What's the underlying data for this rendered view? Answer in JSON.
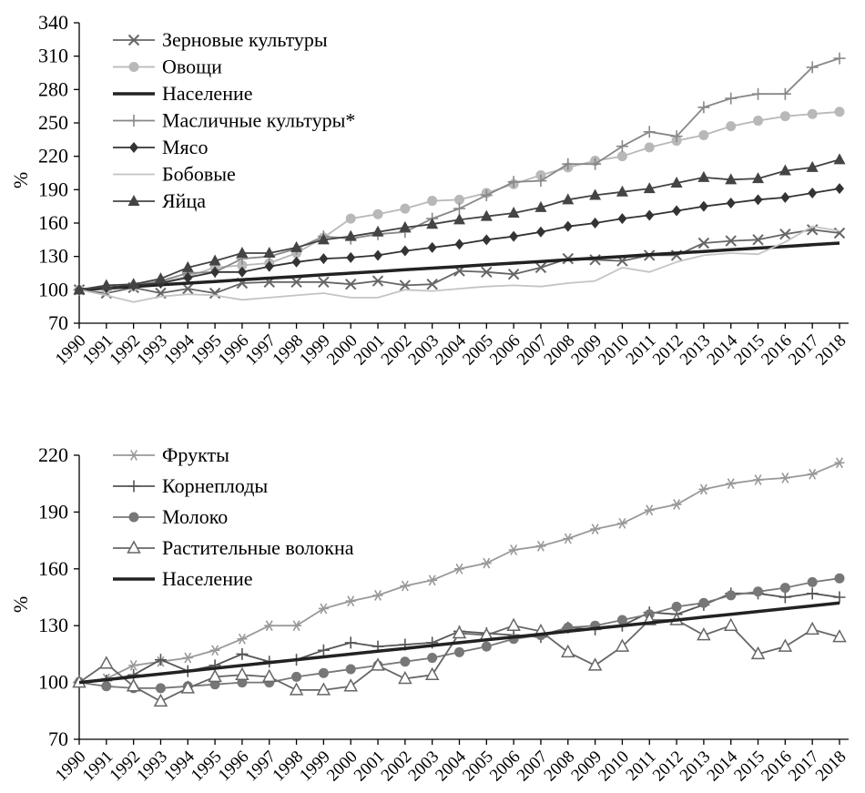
{
  "chart_data": [
    {
      "type": "line",
      "ylabel": "%",
      "ylim": [
        70,
        340
      ],
      "yticks": [
        70,
        100,
        130,
        160,
        190,
        220,
        250,
        280,
        310,
        340
      ],
      "x": [
        "1990",
        "1991",
        "1992",
        "1993",
        "1994",
        "1995",
        "1996",
        "1997",
        "1998",
        "1999",
        "2000",
        "2001",
        "2002",
        "2003",
        "2004",
        "2005",
        "2006",
        "2007",
        "2008",
        "2009",
        "2010",
        "2011",
        "2012",
        "2013",
        "2014",
        "2015",
        "2016",
        "2017",
        "2018"
      ],
      "legend_position": "top-left",
      "series": [
        {
          "name": "Зерновые культуры",
          "color": "#666666",
          "marker": "x",
          "values": [
            100,
            97,
            102,
            97,
            101,
            97,
            106,
            107,
            107,
            107,
            105,
            108,
            104,
            105,
            117,
            116,
            114,
            120,
            128,
            127,
            126,
            131,
            131,
            142,
            144,
            145,
            150,
            154,
            151
          ]
        },
        {
          "name": "Овощи",
          "color": "#b8b8b8",
          "marker": "circle",
          "values": [
            100,
            101,
            103,
            107,
            112,
            120,
            122,
            124,
            133,
            147,
            164,
            168,
            173,
            180,
            181,
            187,
            195,
            203,
            210,
            216,
            220,
            228,
            234,
            239,
            247,
            252,
            256,
            258,
            260
          ]
        },
        {
          "name": "Население",
          "color": "#222222",
          "marker": "none",
          "thick": true,
          "values": [
            100,
            101.5,
            103,
            104.5,
            106,
            107.5,
            109,
            110.5,
            112,
            113.5,
            115,
            116.5,
            118,
            119.5,
            121,
            122.5,
            124,
            125.5,
            127,
            128.5,
            130,
            131.5,
            133,
            134.5,
            136,
            137.5,
            139,
            140.5,
            142
          ]
        },
        {
          "name": "Масличные культуры*",
          "color": "#888888",
          "marker": "plus",
          "values": [
            100,
            102,
            104,
            108,
            115,
            116,
            128,
            130,
            137,
            148,
            146,
            150,
            152,
            164,
            173,
            185,
            197,
            198,
            213,
            213,
            229,
            242,
            238,
            264,
            272,
            276,
            276,
            300,
            308
          ]
        },
        {
          "name": "Мясо",
          "color": "#333333",
          "marker": "diamond",
          "values": [
            100,
            102,
            104,
            106,
            111,
            116,
            116,
            121,
            125,
            128,
            129,
            131,
            135,
            138,
            141,
            145,
            148,
            152,
            157,
            160,
            164,
            167,
            171,
            175,
            178,
            181,
            183,
            187,
            191
          ]
        },
        {
          "name": "Бобовые",
          "color": "#c4c4c4",
          "marker": "none",
          "values": [
            100,
            95,
            89,
            94,
            96,
            95,
            91,
            93,
            95,
            97,
            93,
            93,
            100,
            99,
            101,
            103,
            104,
            103,
            106,
            108,
            120,
            116,
            125,
            131,
            133,
            132,
            143,
            157,
            153
          ]
        },
        {
          "name": "Яйца",
          "color": "#444444",
          "marker": "triangle",
          "values": [
            100,
            104,
            105,
            110,
            120,
            126,
            133,
            133,
            138,
            145,
            148,
            152,
            156,
            159,
            163,
            166,
            169,
            174,
            181,
            185,
            188,
            191,
            196,
            201,
            199,
            200,
            207,
            210,
            217
          ]
        }
      ]
    },
    {
      "type": "line",
      "ylabel": "%",
      "ylim": [
        70,
        220
      ],
      "yticks": [
        70,
        100,
        130,
        160,
        190,
        220
      ],
      "x": [
        "1990",
        "1991",
        "1992",
        "1993",
        "1994",
        "1995",
        "1996",
        "1997",
        "1998",
        "1999",
        "2000",
        "2001",
        "2002",
        "2003",
        "2004",
        "2005",
        "2006",
        "2007",
        "2008",
        "2009",
        "2010",
        "2011",
        "2012",
        "2013",
        "2014",
        "2015",
        "2016",
        "2017",
        "2018"
      ],
      "legend_position": "top-left",
      "series": [
        {
          "name": "Фрукты",
          "color": "#999999",
          "marker": "asterisk",
          "values": [
            100,
            102,
            109,
            111,
            113,
            117,
            123,
            130,
            130,
            139,
            143,
            146,
            151,
            154,
            160,
            163,
            170,
            172,
            176,
            181,
            184,
            191,
            194,
            202,
            205,
            207,
            208,
            210,
            216
          ]
        },
        {
          "name": "Корнеплоды",
          "color": "#555555",
          "marker": "plus",
          "values": [
            100,
            101,
            104,
            112,
            106,
            109,
            115,
            111,
            112,
            117,
            121,
            119,
            120,
            121,
            127,
            126,
            125,
            124,
            129,
            128,
            130,
            137,
            136,
            141,
            147,
            147,
            145,
            147,
            145
          ]
        },
        {
          "name": "Молоко",
          "color": "#777777",
          "marker": "circle",
          "values": [
            100,
            98,
            97,
            97,
            98,
            99,
            100,
            100,
            103,
            105,
            107,
            109,
            111,
            113,
            116,
            119,
            123,
            125,
            129,
            130,
            133,
            136,
            140,
            142,
            146,
            148,
            150,
            153,
            155
          ]
        },
        {
          "name": "Растительные волокна",
          "color": "#666666",
          "marker": "triangle-open",
          "values": [
            100,
            110,
            98,
            90,
            97,
            103,
            104,
            103,
            96,
            96,
            98,
            109,
            102,
            104,
            126,
            125,
            130,
            127,
            116,
            109,
            119,
            133,
            133,
            125,
            130,
            115,
            119,
            128,
            124
          ]
        },
        {
          "name": "Население",
          "color": "#222222",
          "marker": "none",
          "thick": true,
          "values": [
            100,
            101.5,
            103,
            104.5,
            106,
            107.5,
            109,
            110.5,
            112,
            113.5,
            115,
            116.5,
            118,
            119.5,
            121,
            122.5,
            124,
            125.5,
            127,
            128.5,
            130,
            131.5,
            133,
            134.5,
            136,
            137.5,
            139,
            140.5,
            142
          ]
        }
      ]
    }
  ]
}
